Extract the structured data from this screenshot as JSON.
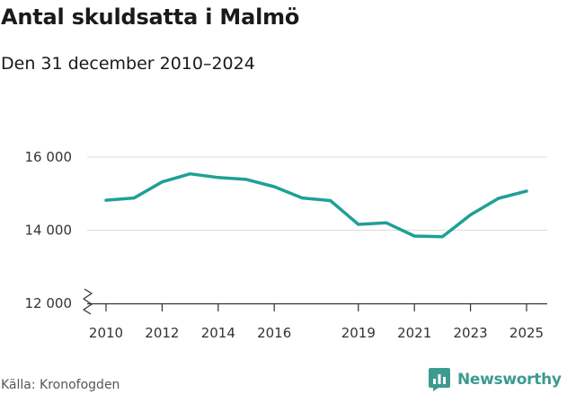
{
  "header": {
    "title": "Antal skuldsatta i Malmö",
    "subtitle": "Den 31 december 2010–2024"
  },
  "footer": {
    "source": "Källa: Kronofogden",
    "brand": "Newsworthy",
    "brand_icon": "bar-chart-logo-icon"
  },
  "colors": {
    "line": "#1fa096",
    "grid": "#dddddd",
    "axis": "#333333",
    "brand": "#3d9a90"
  },
  "chart_data": {
    "type": "line",
    "title": "Antal skuldsatta i Malmö",
    "subtitle": "Den 31 december 2010–2024",
    "xlabel": "",
    "ylabel": "",
    "x": [
      2010,
      2011,
      2012,
      2013,
      2014,
      2015,
      2016,
      2017,
      2018,
      2019,
      2020,
      2021,
      2022,
      2023,
      2024,
      2025
    ],
    "series": [
      {
        "values": [
          14820,
          14880,
          15320,
          15540,
          15440,
          15390,
          15190,
          14880,
          14810,
          14160,
          14200,
          13840,
          13820,
          14420,
          14870,
          15070
        ]
      }
    ],
    "xlim": [
      2010,
      2025
    ],
    "ylim": [
      12000,
      16000
    ],
    "x_ticks": [
      {
        "value": 2010,
        "label": "2010"
      },
      {
        "value": 2012,
        "label": "2012"
      },
      {
        "value": 2014,
        "label": "2014"
      },
      {
        "value": 2016,
        "label": "2016"
      },
      {
        "value": 2019,
        "label": "2019"
      },
      {
        "value": 2021,
        "label": "2021"
      },
      {
        "value": 2023,
        "label": "2023"
      },
      {
        "value": 2025,
        "label": "2025"
      }
    ],
    "y_ticks": [
      {
        "value": 12000,
        "label": "12 000"
      },
      {
        "value": 14000,
        "label": "14 000"
      },
      {
        "value": 16000,
        "label": "16 000"
      }
    ],
    "y_axis_break": true,
    "grid": "horizontal",
    "legend": "none"
  }
}
